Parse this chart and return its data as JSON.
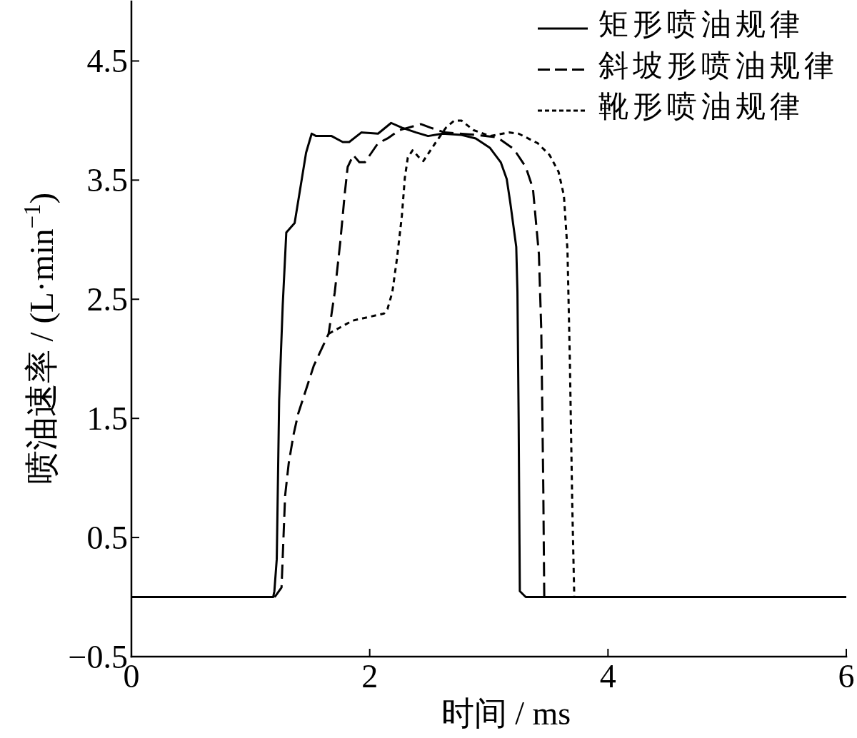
{
  "chart_data": {
    "type": "line",
    "xlabel": "时间 / ms",
    "ylabel": "喷油速率 / (L·min$^{−1}$)",
    "xlim": [
      0,
      6
    ],
    "ylim": [
      -0.5,
      5
    ],
    "xticks": [
      0,
      2,
      4,
      6
    ],
    "yticks": [
      -0.5,
      0.5,
      1.5,
      2.5,
      3.5,
      4.5
    ],
    "legend": "top right",
    "series": [
      {
        "name": "矩形喷油规律",
        "color": "#000000",
        "line_style": "solid",
        "x": [
          0,
          1.19,
          1.2,
          1.22,
          1.24,
          1.27,
          1.3,
          1.37,
          1.466,
          1.513,
          1.55,
          1.68,
          1.774,
          1.828,
          1.93,
          2.07,
          2.18,
          2.27,
          2.39,
          2.49,
          2.61,
          2.77,
          2.89,
          3.01,
          3.1,
          3.15,
          3.18,
          3.23,
          3.24,
          3.25,
          3.26,
          3.31,
          6
        ],
        "values": [
          0,
          0,
          0.05,
          0.32,
          1.65,
          2.45,
          3.06,
          3.14,
          3.73,
          3.89,
          3.87,
          3.87,
          3.82,
          3.82,
          3.9,
          3.89,
          3.98,
          3.94,
          3.9,
          3.87,
          3.89,
          3.88,
          3.85,
          3.77,
          3.65,
          3.51,
          3.31,
          2.94,
          2.56,
          1.5,
          0.05,
          0,
          0
        ]
      },
      {
        "name": "斜坡形喷油规律",
        "color": "#000000",
        "line_style": "dashed",
        "x": [
          1.2,
          1.21,
          1.26,
          1.29,
          1.32,
          1.36,
          1.4,
          1.53,
          1.655,
          1.707,
          1.753,
          1.79,
          1.815,
          1.862,
          1.913,
          1.96,
          2.07,
          2.15,
          2.25,
          2.43,
          2.51,
          2.63,
          2.89,
          3.07,
          3.21,
          3.31,
          3.37,
          3.42,
          3.44,
          3.457,
          3.465
        ],
        "values": [
          0,
          0.01,
          0.08,
          0.85,
          1.12,
          1.36,
          1.54,
          1.94,
          2.21,
          2.56,
          2.98,
          3.38,
          3.61,
          3.71,
          3.65,
          3.65,
          3.81,
          3.85,
          3.92,
          3.97,
          3.94,
          3.9,
          3.88,
          3.86,
          3.76,
          3.61,
          3.43,
          2.88,
          2.24,
          0.91,
          0
        ]
      },
      {
        "name": "靴形喷油规律",
        "color": "#000000",
        "line_style": "dotted",
        "x": [
          1.655,
          1.855,
          2.12,
          2.15,
          2.19,
          2.23,
          2.27,
          2.295,
          2.32,
          2.36,
          2.415,
          2.45,
          2.55,
          2.64,
          2.71,
          2.77,
          2.87,
          3.01,
          3.17,
          3.25,
          3.41,
          3.51,
          3.585,
          3.63,
          3.66,
          3.68,
          3.7,
          3.717
        ],
        "values": [
          2.21,
          2.32,
          2.38,
          2.42,
          2.56,
          2.85,
          3.2,
          3.52,
          3.69,
          3.75,
          3.69,
          3.66,
          3.81,
          3.94,
          4.0,
          4.0,
          3.92,
          3.87,
          3.9,
          3.89,
          3.81,
          3.71,
          3.57,
          3.37,
          2.91,
          1.98,
          0.78,
          0
        ]
      }
    ]
  }
}
